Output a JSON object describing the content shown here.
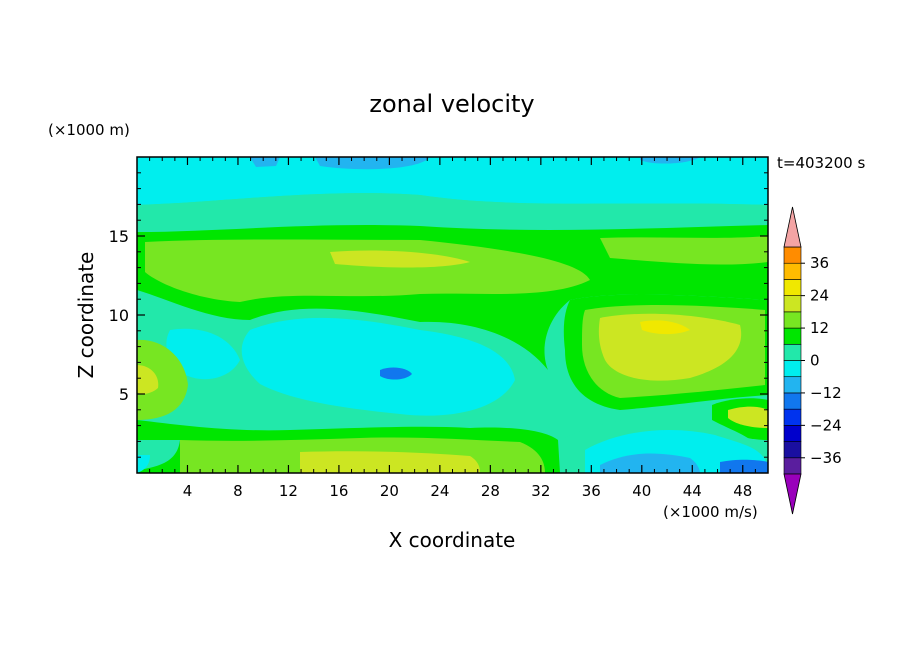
{
  "chart_data": {
    "type": "heatmap",
    "title": "zonal velocity",
    "xlabel": "X coordinate",
    "ylabel": "Z coordinate",
    "x_unit": "(×1000 m/s)",
    "y_unit": "(×1000 m)",
    "time_label": "t=403200 s",
    "xlim": [
      0,
      50
    ],
    "ylim": [
      0,
      20
    ],
    "x_ticks": [
      "4",
      "8",
      "12",
      "16",
      "20",
      "24",
      "28",
      "32",
      "36",
      "40",
      "44",
      "48"
    ],
    "y_ticks": [
      "5",
      "10",
      "15"
    ],
    "colorbar": {
      "levels": [
        -36,
        -30,
        -24,
        -18,
        -12,
        -6,
        0,
        6,
        12,
        18,
        24,
        30,
        36,
        42
      ],
      "tick_labels": [
        "36",
        "24",
        "12",
        "0",
        "−12",
        "−24",
        "−36"
      ],
      "colors": [
        "#9900bb",
        "#5a1e9e",
        "#1a0fa0",
        "#0000cc",
        "#0033ee",
        "#1177ee",
        "#22b4f0",
        "#00eeee",
        "#22e8aa",
        "#00e600",
        "#77e622",
        "#cce622",
        "#f0e800",
        "#ffbb00",
        "#ff8c00",
        "#ff5500",
        "#ee1111",
        "#f4a4a4"
      ],
      "under_color": "#9900bb",
      "over_color": "#f4a4a4"
    }
  }
}
